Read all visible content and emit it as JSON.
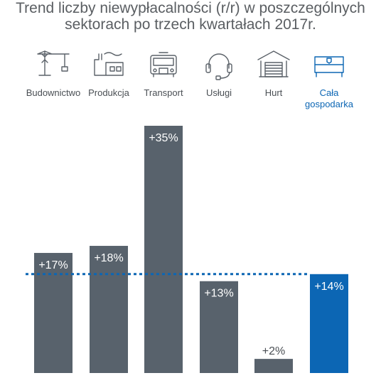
{
  "title_line1": "Trend liczby niewypłacalności (r/r) w poszczególnych",
  "title_line2": "sektorach po trzech kwartałach 2017r.",
  "colors": {
    "bar": "#58626c",
    "highlight": "#0c66b4",
    "icon": "#5a6168",
    "reference_line": "#0c66b4"
  },
  "chart_data": {
    "type": "bar",
    "categories": [
      {
        "label_lines": [
          "Budownictwo"
        ],
        "icon": "crane-icon"
      },
      {
        "label_lines": [
          "Produkcja"
        ],
        "icon": "factory-icon"
      },
      {
        "label_lines": [
          "Transport"
        ],
        "icon": "truck-icon"
      },
      {
        "label_lines": [
          "Usługi"
        ],
        "icon": "headset-icon"
      },
      {
        "label_lines": [
          "Hurt"
        ],
        "icon": "warehouse-icon"
      },
      {
        "label_lines": [
          "Cała",
          "gospodarka"
        ],
        "icon": "flag-icon",
        "highlight": true
      }
    ],
    "values": [
      17,
      18,
      35,
      13,
      2,
      14
    ],
    "value_labels": [
      "+17%",
      "+18%",
      "+35%",
      "+13%",
      "+2%",
      "+14%"
    ],
    "reference_line": {
      "value": 14,
      "style": "dotted"
    },
    "ylim": [
      0,
      35
    ]
  }
}
